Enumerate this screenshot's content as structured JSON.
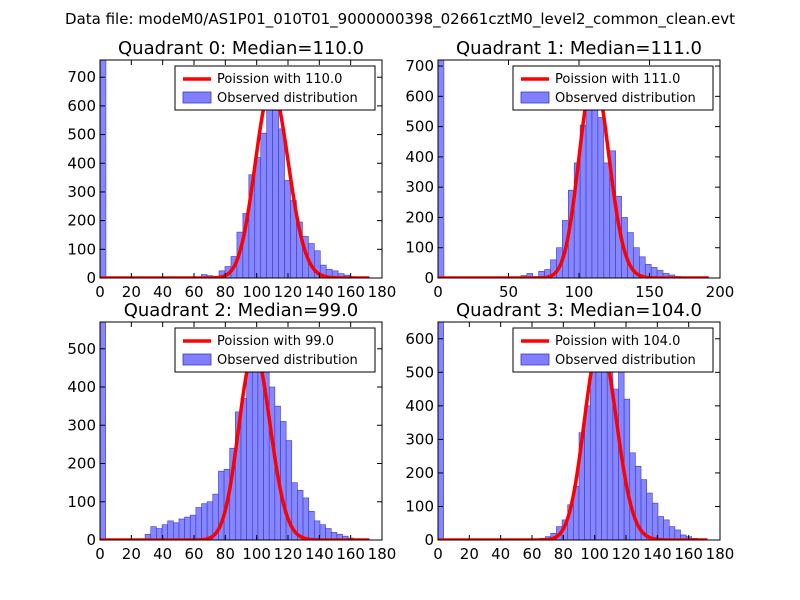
{
  "suptitle": "Data file: modeM0/AS1P01_010T01_9000000398_02661cztM0_level2_common_clean.evt",
  "colors": {
    "bar": "#7f7fff",
    "bar_edge": "#3a3ac8",
    "curve": "#ff0000",
    "axes": "#000000"
  },
  "chart_data": [
    {
      "type": "bar",
      "title": "Quadrant 0: Median=110.0",
      "xlim": [
        0,
        180
      ],
      "ylim": [
        0,
        760
      ],
      "xticks": [
        0,
        20,
        40,
        60,
        80,
        100,
        120,
        140,
        160,
        180
      ],
      "yticks": [
        0,
        100,
        200,
        300,
        400,
        500,
        600,
        700
      ],
      "legend": [
        "Poission with 110.0",
        "Observed distribution"
      ],
      "legend_loc": "upper-right",
      "median": 110,
      "bin_width": 3.8,
      "bins": [
        [
          0,
          760
        ],
        [
          64.6,
          12
        ],
        [
          68.4,
          8
        ],
        [
          72.2,
          6
        ],
        [
          76,
          25
        ],
        [
          79.8,
          40
        ],
        [
          83.6,
          75
        ],
        [
          87.4,
          160
        ],
        [
          91.2,
          225
        ],
        [
          95,
          360
        ],
        [
          98.8,
          420
        ],
        [
          102.6,
          505
        ],
        [
          106.4,
          700
        ],
        [
          110.2,
          620
        ],
        [
          114,
          520
        ],
        [
          117.8,
          340
        ],
        [
          121.6,
          270
        ],
        [
          125.4,
          195
        ],
        [
          129.2,
          145
        ],
        [
          133,
          120
        ],
        [
          136.8,
          95
        ],
        [
          140.6,
          45
        ],
        [
          144.4,
          30
        ],
        [
          148.2,
          25
        ],
        [
          152,
          15
        ],
        [
          155.8,
          10
        ],
        [
          159.6,
          5
        ],
        [
          163.4,
          3
        ]
      ]
    },
    {
      "type": "bar",
      "title": "Quadrant 1: Median=111.0",
      "xlim": [
        0,
        200
      ],
      "ylim": [
        0,
        720
      ],
      "xticks": [
        0,
        50,
        100,
        150,
        200
      ],
      "yticks": [
        0,
        100,
        200,
        300,
        400,
        500,
        600,
        700
      ],
      "legend": [
        "Poission with 111.0",
        "Observed distribution"
      ],
      "legend_loc": "upper-right",
      "median": 111,
      "bin_width": 4.2,
      "bins": [
        [
          0,
          720
        ],
        [
          58.8,
          8
        ],
        [
          63,
          15
        ],
        [
          67.2,
          5
        ],
        [
          71.4,
          22
        ],
        [
          75.6,
          28
        ],
        [
          79.8,
          60
        ],
        [
          84,
          100
        ],
        [
          88.2,
          190
        ],
        [
          92.4,
          290
        ],
        [
          96.6,
          380
        ],
        [
          100.8,
          505
        ],
        [
          105,
          700
        ],
        [
          109.2,
          590
        ],
        [
          113.4,
          530
        ],
        [
          117.6,
          380
        ],
        [
          121.8,
          420
        ],
        [
          126,
          270
        ],
        [
          130.2,
          200
        ],
        [
          134.4,
          150
        ],
        [
          138.6,
          100
        ],
        [
          142.8,
          70
        ],
        [
          147,
          45
        ],
        [
          151.2,
          35
        ],
        [
          155.4,
          25
        ],
        [
          159.6,
          15
        ],
        [
          163.8,
          10
        ],
        [
          168,
          5
        ]
      ]
    },
    {
      "type": "bar",
      "title": "Quadrant 2: Median=99.0",
      "xlim": [
        0,
        180
      ],
      "ylim": [
        0,
        570
      ],
      "xticks": [
        0,
        20,
        40,
        60,
        80,
        100,
        120,
        140,
        160,
        180
      ],
      "yticks": [
        0,
        100,
        200,
        300,
        400,
        500
      ],
      "legend": [
        "Poission with 99.0",
        "Observed distribution"
      ],
      "legend_loc": "upper-right",
      "median": 99,
      "bin_width": 3.6,
      "bins": [
        [
          0,
          570
        ],
        [
          28.8,
          15
        ],
        [
          32.4,
          35
        ],
        [
          36,
          30
        ],
        [
          39.6,
          40
        ],
        [
          43.2,
          50
        ],
        [
          46.8,
          45
        ],
        [
          50.4,
          55
        ],
        [
          54,
          60
        ],
        [
          57.6,
          65
        ],
        [
          61.2,
          85
        ],
        [
          64.8,
          95
        ],
        [
          68.4,
          100
        ],
        [
          72,
          120
        ],
        [
          75.6,
          180
        ],
        [
          79.2,
          185
        ],
        [
          82.8,
          240
        ],
        [
          86.4,
          335
        ],
        [
          90,
          370
        ],
        [
          93.6,
          450
        ],
        [
          97.2,
          520
        ],
        [
          100.8,
          510
        ],
        [
          104.4,
          440
        ],
        [
          108,
          400
        ],
        [
          111.6,
          350
        ],
        [
          115.2,
          310
        ],
        [
          118.8,
          260
        ],
        [
          122.4,
          150
        ],
        [
          126,
          130
        ],
        [
          129.6,
          110
        ],
        [
          133.2,
          75
        ],
        [
          136.8,
          50
        ],
        [
          140.4,
          40
        ],
        [
          144,
          30
        ],
        [
          147.6,
          20
        ],
        [
          151.2,
          15
        ],
        [
          154.8,
          10
        ],
        [
          158.4,
          5
        ]
      ]
    },
    {
      "type": "bar",
      "title": "Quadrant 3: Median=104.0",
      "xlim": [
        0,
        180
      ],
      "ylim": [
        0,
        650
      ],
      "xticks": [
        0,
        20,
        40,
        60,
        80,
        100,
        120,
        140,
        160,
        180
      ],
      "yticks": [
        0,
        100,
        200,
        300,
        400,
        500,
        600
      ],
      "legend": [
        "Poission with 104.0",
        "Observed distribution"
      ],
      "legend_loc": "upper-right",
      "median": 104,
      "bin_width": 3.6,
      "bins": [
        [
          0,
          650
        ],
        [
          64.8,
          5
        ],
        [
          68.4,
          10
        ],
        [
          72,
          20
        ],
        [
          75.6,
          40
        ],
        [
          79.2,
          60
        ],
        [
          82.8,
          105
        ],
        [
          86.4,
          160
        ],
        [
          90,
          320
        ],
        [
          93.6,
          400
        ],
        [
          97.2,
          530
        ],
        [
          100.8,
          600
        ],
        [
          104.4,
          580
        ],
        [
          108,
          530
        ],
        [
          111.6,
          450
        ],
        [
          115.2,
          620
        ],
        [
          118.8,
          420
        ],
        [
          122.4,
          260
        ],
        [
          126,
          220
        ],
        [
          129.6,
          180
        ],
        [
          133.2,
          140
        ],
        [
          136.8,
          110
        ],
        [
          140.4,
          70
        ],
        [
          144,
          60
        ],
        [
          147.6,
          40
        ],
        [
          151.2,
          30
        ],
        [
          154.8,
          15
        ],
        [
          158.4,
          10
        ],
        [
          162,
          5
        ]
      ]
    }
  ]
}
